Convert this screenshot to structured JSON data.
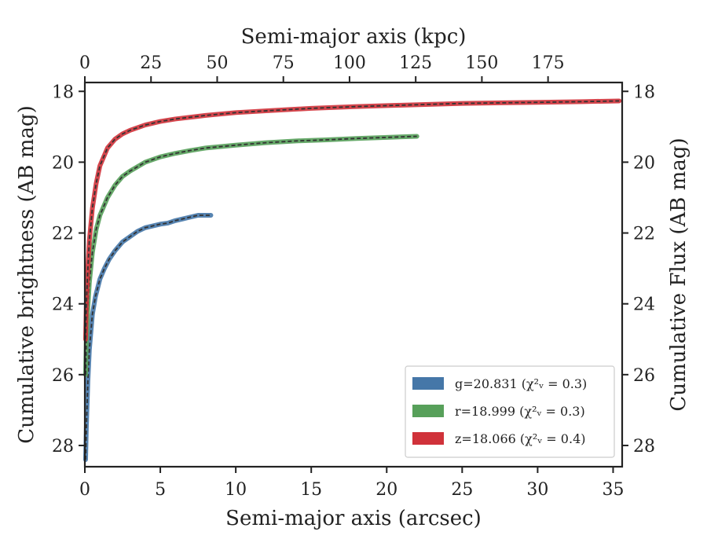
{
  "chart_data": {
    "type": "line",
    "xlabel": "Semi-major axis (arcsec)",
    "ylabel": "Cumulative brightness (AB mag)",
    "top_xlabel": "Semi-major axis (kpc)",
    "right_ylabel": "Cumulative Flux (AB mag)",
    "xlim": [
      0,
      35.6
    ],
    "ylim": [
      28.6,
      17.75
    ],
    "y_inverted": true,
    "top_xlim": [
      0,
      203
    ],
    "x_ticks": [
      0,
      5,
      10,
      15,
      20,
      25,
      30,
      35
    ],
    "y_ticks": [
      18,
      20,
      22,
      24,
      26,
      28
    ],
    "top_x_ticks": [
      0,
      25,
      50,
      75,
      100,
      125,
      150,
      175
    ],
    "grid": false,
    "legend": {
      "position": "lower-right",
      "entries": [
        {
          "label": "g=20.831 (χ²ᵥ = 0.3)"
        },
        {
          "label": "r=18.999 (χ²ᵥ = 0.3)"
        },
        {
          "label": "z=18.066 (χ²ᵥ = 0.4)"
        }
      ]
    },
    "colors": {
      "g": "#4577a8",
      "r": "#57a05a",
      "z": "#d0323a",
      "model": "#333333"
    },
    "series": [
      {
        "band": "g",
        "x": [
          0.05,
          0.1,
          0.2,
          0.3,
          0.5,
          0.7,
          1.0,
          1.3,
          1.6,
          2.0,
          2.5,
          3.0,
          3.5,
          4.0,
          4.5,
          5.0,
          5.5,
          6.0,
          6.5,
          7.0,
          7.5,
          8.0,
          8.35
        ],
        "y": [
          28.4,
          27.5,
          26.2,
          25.3,
          24.3,
          23.8,
          23.3,
          23.0,
          22.75,
          22.5,
          22.25,
          22.1,
          21.95,
          21.85,
          21.8,
          21.75,
          21.72,
          21.65,
          21.6,
          21.55,
          21.5,
          21.5,
          21.5
        ]
      },
      {
        "band": "r",
        "x": [
          0.05,
          0.1,
          0.2,
          0.3,
          0.5,
          0.75,
          1.0,
          1.5,
          2.0,
          2.5,
          3.0,
          4.0,
          5.0,
          6.0,
          7.0,
          8.0,
          10.0,
          12.0,
          14.0,
          16.0,
          18.0,
          20.0,
          22.0
        ],
        "y": [
          26.0,
          25.0,
          24.1,
          23.4,
          22.55,
          21.9,
          21.5,
          21.0,
          20.65,
          20.4,
          20.25,
          20.0,
          19.85,
          19.75,
          19.67,
          19.6,
          19.52,
          19.45,
          19.4,
          19.37,
          19.33,
          19.3,
          19.27
        ]
      },
      {
        "band": "z",
        "x": [
          0.05,
          0.1,
          0.2,
          0.3,
          0.5,
          0.75,
          1.0,
          1.5,
          2.0,
          2.5,
          3.0,
          4.0,
          5.0,
          6.0,
          8.0,
          10.0,
          12.0,
          15.0,
          18.0,
          21.0,
          25.0,
          30.0,
          33.0,
          35.4
        ],
        "y": [
          25.0,
          24.0,
          23.0,
          22.2,
          21.3,
          20.6,
          20.1,
          19.6,
          19.35,
          19.2,
          19.1,
          18.95,
          18.85,
          18.78,
          18.68,
          18.6,
          18.55,
          18.48,
          18.43,
          18.39,
          18.34,
          18.31,
          18.29,
          18.27
        ]
      }
    ]
  }
}
